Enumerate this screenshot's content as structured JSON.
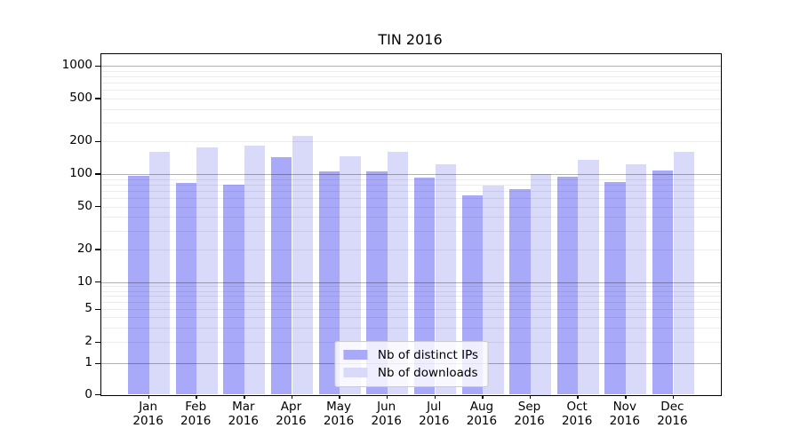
{
  "title": "TIN 2016",
  "chart_data": {
    "type": "bar",
    "title": "TIN 2016",
    "categories": [
      "Jan",
      "Feb",
      "Mar",
      "Apr",
      "May",
      "Jun",
      "Jul",
      "Aug",
      "Sep",
      "Oct",
      "Nov",
      "Dec"
    ],
    "category_year": "2016",
    "series": [
      {
        "name": "Nb of distinct IPs",
        "color": "#a9a9fa",
        "values": [
          96,
          82,
          79,
          143,
          105,
          105,
          93,
          64,
          73,
          95,
          85,
          108
        ]
      },
      {
        "name": "Nb of downloads",
        "color": "#d9d9fa",
        "values": [
          162,
          176,
          182,
          224,
          146,
          162,
          124,
          78,
          100,
          135,
          122,
          161
        ]
      }
    ],
    "yscale": "symlog",
    "ytick_labels": [
      "0",
      "1",
      "2",
      "5",
      "10",
      "20",
      "50",
      "100",
      "200",
      "500",
      "1000"
    ],
    "ytick_values": [
      0,
      1,
      2,
      5,
      10,
      20,
      50,
      100,
      200,
      500,
      1000
    ],
    "ylim": [
      0,
      1300
    ],
    "grid": "horizontal major+minor",
    "legend_position": "lower center",
    "colors": {
      "major_grid": "#b3b3b3",
      "minor_grid": "#ededed",
      "spine": "#000000",
      "text": "#000000"
    }
  }
}
